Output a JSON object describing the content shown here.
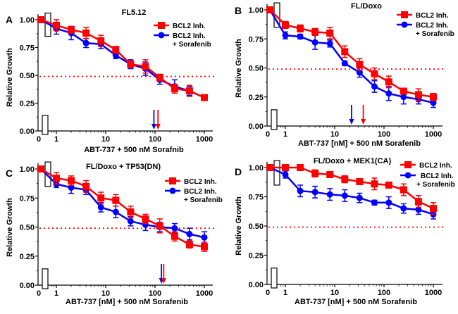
{
  "figure": {
    "doses": [
      0,
      1,
      2,
      4,
      8,
      16,
      32,
      64,
      125,
      250,
      500,
      1000
    ],
    "legend": {
      "red": "BCL2 Inh.",
      "blue_line1": "BCL2 Inh.",
      "blue_line2": "+ Sorafenib"
    },
    "colors": {
      "red": "#ff0000",
      "blue": "#0000ff",
      "threshold": "#ff0000"
    }
  },
  "chart_data": [
    {
      "type": "line",
      "panel": "A",
      "title": "FL5.12",
      "xlabel": "ABT-737 + 500 nM Sorafnib",
      "ylabel": "Relative Growth",
      "xscale": "log",
      "x": [
        0,
        1,
        2,
        4,
        8,
        16,
        32,
        64,
        125,
        250,
        500,
        1000
      ],
      "xticks": [
        "0",
        "1",
        "10",
        "100",
        "1000"
      ],
      "yticks": [
        "0.00",
        "0.25",
        "0.50",
        "0.75",
        "1.00"
      ],
      "ylim": [
        0,
        1.05
      ],
      "threshold": 0.49,
      "series": [
        {
          "name": "BCL2 Inh.",
          "color": "red",
          "marker": "square",
          "values": [
            1.0,
            0.95,
            0.91,
            0.88,
            0.81,
            0.73,
            0.6,
            0.58,
            0.48,
            0.38,
            0.36,
            0.3
          ],
          "errors": [
            0,
            0.05,
            0.03,
            0.05,
            0.05,
            0.03,
            0.03,
            0.06,
            0.03,
            0.04,
            0.05,
            0.02
          ],
          "ic50_arrow": 115
        },
        {
          "name": "BCL2 Inh. + Sorafenib",
          "color": "blue",
          "marker": "circle",
          "values": [
            1.0,
            0.92,
            0.88,
            0.79,
            0.78,
            0.68,
            0.6,
            0.56,
            0.46,
            0.4,
            0.36,
            0.3
          ],
          "errors": [
            0,
            0.05,
            0.06,
            0.04,
            0.04,
            0.03,
            0.04,
            0.06,
            0.04,
            0.06,
            0.04,
            0.02
          ],
          "ic50_arrow": 95
        }
      ],
      "legend": "top-right"
    },
    {
      "type": "line",
      "panel": "B",
      "title": "FL/Doxo",
      "xlabel": "ABT-737 [nM] + 500 nM Sorafenib",
      "ylabel": "Relative Growth",
      "xscale": "log",
      "x": [
        0,
        1,
        2,
        4,
        8,
        16,
        32,
        64,
        125,
        250,
        500,
        1000
      ],
      "xticks": [
        "0",
        "1",
        "10",
        "100",
        "1000"
      ],
      "yticks": [
        "0.00",
        "0.25",
        "0.50",
        "0.75",
        "1.00"
      ],
      "ylim": [
        0,
        1.05
      ],
      "threshold": 0.49,
      "series": [
        {
          "name": "BCL2 Inh.",
          "color": "red",
          "marker": "square",
          "values": [
            1.0,
            0.87,
            0.84,
            0.81,
            0.8,
            0.64,
            0.53,
            0.45,
            0.38,
            0.3,
            0.27,
            0.25
          ],
          "errors": [
            0,
            0.03,
            0.03,
            0.03,
            0.05,
            0.05,
            0.05,
            0.05,
            0.05,
            0.02,
            0.05,
            0.03
          ],
          "ic50_arrow": 38
        },
        {
          "name": "BCL2 Inh. + Sorafenib",
          "color": "blue",
          "marker": "circle",
          "values": [
            1.0,
            0.78,
            0.77,
            0.72,
            0.71,
            0.54,
            0.46,
            0.34,
            0.28,
            0.25,
            0.23,
            0.2
          ],
          "errors": [
            0,
            0.03,
            0.02,
            0.06,
            0.03,
            0.02,
            0.04,
            0.05,
            0.06,
            0.06,
            0.04,
            0.04
          ],
          "ic50_arrow": 22
        }
      ],
      "legend": "top-right"
    },
    {
      "type": "line",
      "panel": "C",
      "title": "FL/Doxo + TP53(DN)",
      "xlabel": "ABT-737 [nM] + 500 nM Sorafenib",
      "ylabel": "Relative Growth",
      "xscale": "log",
      "x": [
        0,
        1,
        2,
        4,
        8,
        16,
        32,
        64,
        125,
        250,
        500,
        1000
      ],
      "xticks": [
        "0",
        "1",
        "10",
        "100",
        "1000"
      ],
      "yticks": [
        "0.00",
        "0.25",
        "0.50",
        "0.75",
        "1.00"
      ],
      "ylim": [
        0,
        1.05
      ],
      "threshold": 0.49,
      "series": [
        {
          "name": "BCL2 Inh.",
          "color": "red",
          "marker": "square",
          "values": [
            1.0,
            0.92,
            0.9,
            0.85,
            0.75,
            0.73,
            0.63,
            0.57,
            0.51,
            0.42,
            0.35,
            0.33
          ],
          "errors": [
            0,
            0.05,
            0.04,
            0.05,
            0.05,
            0.05,
            0.05,
            0.04,
            0.06,
            0.04,
            0.03,
            0.04
          ],
          "ic50_arrow": 150
        },
        {
          "name": "BCL2 Inh. + Sorafenib",
          "color": "blue",
          "marker": "circle",
          "values": [
            1.0,
            0.87,
            0.84,
            0.82,
            0.67,
            0.63,
            0.55,
            0.52,
            0.5,
            0.49,
            0.44,
            0.41
          ],
          "errors": [
            0,
            0.03,
            0.05,
            0.04,
            0.04,
            0.05,
            0.04,
            0.05,
            0.04,
            0.04,
            0.05,
            0.05
          ],
          "ic50_arrow": 135
        }
      ],
      "legend": "top-right"
    },
    {
      "type": "line",
      "panel": "D",
      "title": "FL/Doxo + MEK1(CA)",
      "xlabel": "ABT-737 [nM] + 500 nM Sorafenib",
      "ylabel": "Relative Growth",
      "xscale": "log",
      "x": [
        0,
        1,
        2,
        4,
        8,
        16,
        32,
        64,
        125,
        250,
        500,
        1000
      ],
      "xticks": [
        "0",
        "1",
        "10",
        "100",
        "1000"
      ],
      "yticks": [
        "0.00",
        "0.25",
        "0.50",
        "0.75",
        "1.00"
      ],
      "ylim": [
        0,
        1.05
      ],
      "threshold": 0.49,
      "series": [
        {
          "name": "BCL2 Inh.",
          "color": "red",
          "marker": "square",
          "values": [
            1.0,
            1.0,
            1.0,
            0.95,
            0.94,
            0.9,
            0.88,
            0.86,
            0.85,
            0.81,
            0.71,
            0.65
          ],
          "errors": [
            0,
            0.01,
            0.01,
            0.03,
            0.02,
            0.03,
            0.02,
            0.05,
            0.01,
            0.05,
            0.05,
            0.05
          ],
          "ic50_arrow": null
        },
        {
          "name": "BCL2 Inh. + Sorafenib",
          "color": "blue",
          "marker": "circle",
          "values": [
            1.0,
            0.94,
            0.8,
            0.79,
            0.77,
            0.76,
            0.74,
            0.7,
            0.7,
            0.65,
            0.64,
            0.6
          ],
          "errors": [
            0,
            0.03,
            0.05,
            0.05,
            0.05,
            0.05,
            0.04,
            0.02,
            0.05,
            0.04,
            0.04,
            0.04
          ],
          "ic50_arrow": null
        }
      ],
      "legend": "top-right"
    }
  ]
}
